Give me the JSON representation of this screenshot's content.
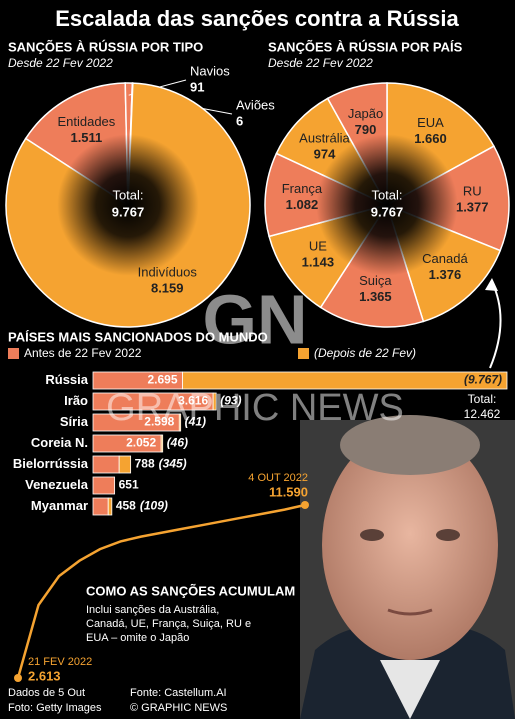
{
  "title": "Escalada das sanções contra a Rússia",
  "footer": {
    "data_note": "Dados de 5 Out",
    "photo": "Foto: Getty Images",
    "source": "Fonte: Castellum.AI",
    "copyright": "© GRAPHIC NEWS"
  },
  "watermark": {
    "logo": "GN",
    "text": "GRAPHIC NEWS"
  },
  "chart_data": [
    {
      "type": "pie",
      "title": "SANÇÕES À RÚSSIA POR TIPO",
      "subtitle": "Desde 22 Fev 2022",
      "categories": [
        "Entidades",
        "Navios",
        "Aviões",
        "Indivíduos"
      ],
      "values": [
        1511,
        91,
        6,
        8159
      ],
      "value_labels": [
        "1.511",
        "91",
        "6",
        "8.159"
      ],
      "colors": [
        "#ee7d5a",
        "#ee7d5a",
        "#ee7d5a",
        "#f5a331"
      ],
      "total_label": "Total:",
      "total_value": "9.767"
    },
    {
      "type": "pie",
      "title": "SANÇÕES À RÚSSIA POR PAÍS",
      "subtitle": "Desde 22 Fev 2022",
      "categories": [
        "EUA",
        "RU",
        "Canadá",
        "Suiça",
        "UE",
        "França",
        "Austrália",
        "Japão"
      ],
      "values": [
        1660,
        1377,
        1376,
        1365,
        1143,
        1082,
        974,
        790
      ],
      "value_labels": [
        "1.660",
        "1.377",
        "1.376",
        "1.365",
        "1.143",
        "1.082",
        "974",
        "790"
      ],
      "colors": [
        "#f5a331",
        "#ee7d5a",
        "#f5a331",
        "#ee7d5a",
        "#f5a331",
        "#ee7d5a",
        "#f5a331",
        "#ee7d5a"
      ],
      "total_label": "Total:",
      "total_value": "9.767"
    },
    {
      "type": "stacked_bar",
      "orientation": "horizontal",
      "title": "PAÍSES MAIS SANCIONADOS DO MUNDO",
      "categories": [
        "Rússia",
        "Irão",
        "Síria",
        "Coreia N.",
        "Bielorrússia",
        "Venezuela",
        "Myanmar"
      ],
      "series": [
        {
          "name": "Antes de 22 Fev 2022",
          "color": "#ee7d5a",
          "values": [
            2695,
            3616,
            2598,
            2052,
            788,
            651,
            458
          ],
          "value_labels": [
            "2.695",
            "3.616",
            "2.598",
            "2.052",
            "788",
            "651",
            "458"
          ]
        },
        {
          "name": "(Depois de 22 Fev)",
          "color": "#f5a331",
          "values": [
            9767,
            93,
            41,
            46,
            345,
            null,
            109
          ],
          "value_labels": [
            "(9.767)",
            "(93)",
            "(41)",
            "(46)",
            "(345)",
            null,
            "(109)"
          ]
        }
      ],
      "total_label": "Total:",
      "total_value": "12.462"
    },
    {
      "type": "line",
      "title": "COMO AS SANÇÕES ACUMULAM",
      "note": "Inclui sanções da Austrália, Canadá, UE, França, Suiça, RU e EUA – omite o Japão",
      "categories": [
        "21 FEV 2022",
        null,
        null,
        null,
        null,
        null,
        null,
        null,
        null,
        null,
        null,
        null,
        null,
        null,
        "4 OUT 2022"
      ],
      "values": [
        2613,
        6400,
        7900,
        8700,
        9300,
        9700,
        9950,
        10150,
        10350,
        10550,
        10750,
        10950,
        11150,
        11350,
        11590
      ],
      "value_labels": [
        "2.613",
        null,
        null,
        null,
        null,
        null,
        null,
        null,
        null,
        null,
        null,
        null,
        null,
        null,
        "11.590"
      ],
      "color": "#f5a331"
    }
  ]
}
